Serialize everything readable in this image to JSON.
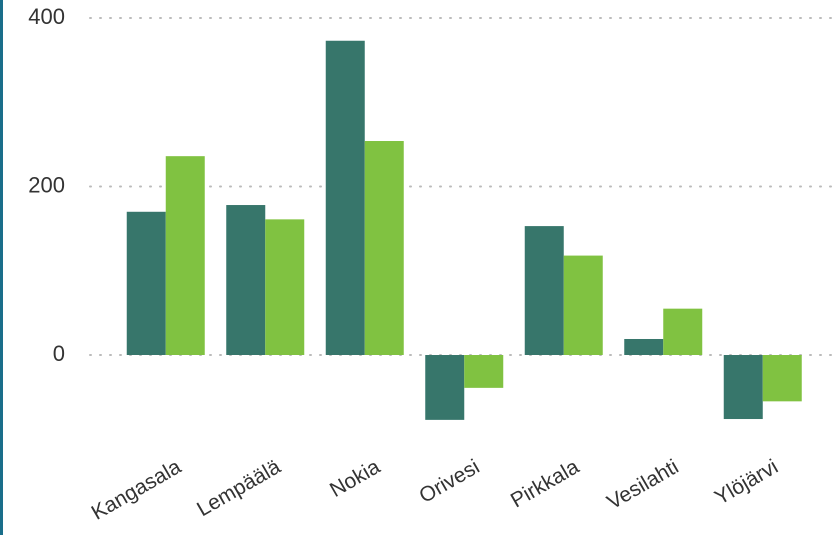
{
  "chart_data": {
    "type": "bar",
    "categories": [
      "Kangasala",
      "Lempäälä",
      "Nokia",
      "Orivesi",
      "Pirkkala",
      "Vesilahti",
      "Ylöjärvi"
    ],
    "series": [
      {
        "color": "#37766b",
        "values": [
          170,
          178,
          373,
          -77,
          153,
          19,
          -76
        ]
      },
      {
        "color": "#80c241",
        "values": [
          236,
          161,
          254,
          -39,
          118,
          55,
          -55
        ]
      }
    ],
    "ylim": [
      -100,
      400
    ],
    "yticks": [
      0,
      200,
      400
    ],
    "grid": true
  }
}
